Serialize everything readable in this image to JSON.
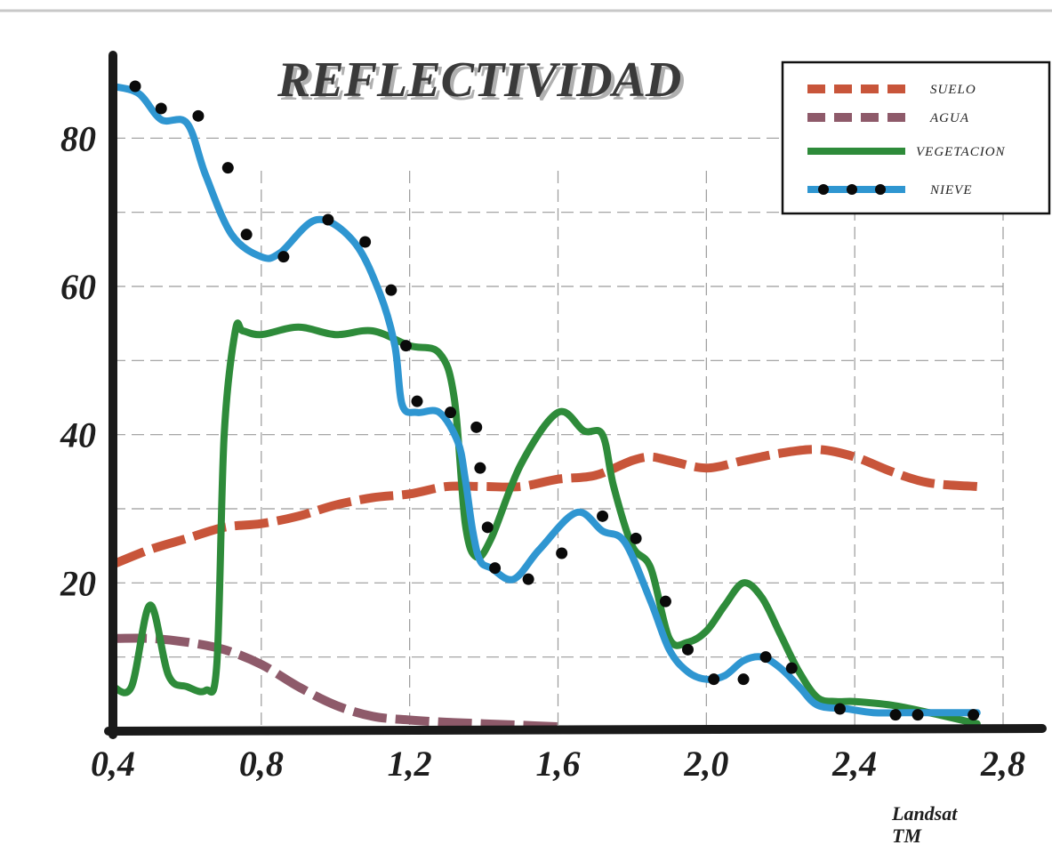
{
  "chart_data": {
    "type": "line",
    "title": "REFLECTIVIDAD",
    "xlabel": "",
    "ylabel": "",
    "xlim": [
      0.4,
      2.8
    ],
    "ylim": [
      0,
      90
    ],
    "x_ticks": [
      "0,4",
      "0,8",
      "1,2",
      "1,6",
      "2,0",
      "2,4",
      "2,8"
    ],
    "x_tick_values": [
      0.4,
      0.8,
      1.2,
      1.6,
      2.0,
      2.4,
      2.8
    ],
    "y_ticks": [
      "20",
      "40",
      "60",
      "80"
    ],
    "y_tick_values": [
      20,
      40,
      60,
      80
    ],
    "grid": "dashed",
    "legend_position": "top-right",
    "note": [
      "Landsat",
      "TM"
    ],
    "series": [
      {
        "name": "SUELO",
        "color": "#c8553a",
        "style": "dashed",
        "x": [
          0.4,
          0.5,
          0.6,
          0.7,
          0.8,
          0.9,
          1.0,
          1.1,
          1.2,
          1.3,
          1.4,
          1.5,
          1.6,
          1.7,
          1.8,
          1.85,
          1.9,
          2.0,
          2.1,
          2.2,
          2.3,
          2.4,
          2.5,
          2.6,
          2.73
        ],
        "y": [
          22.5,
          24.5,
          26,
          27.5,
          28,
          29,
          30.5,
          31.5,
          32,
          33,
          33,
          33,
          34,
          34.5,
          36.5,
          37,
          36.5,
          35.5,
          36.5,
          37.5,
          38,
          37,
          35,
          33.5,
          33
        ]
      },
      {
        "name": "AGUA",
        "color": "#8e5a6a",
        "style": "dashed",
        "x": [
          0.4,
          0.5,
          0.6,
          0.7,
          0.8,
          0.9,
          1.0,
          1.1,
          1.2,
          1.3,
          1.4,
          1.5,
          1.6
        ],
        "y": [
          12.5,
          12.5,
          12,
          11,
          9,
          6,
          3.5,
          2,
          1.5,
          1.2,
          1,
          0.8,
          0.6
        ]
      },
      {
        "name": "VEGETACION",
        "color": "#2e8b3a",
        "style": "solid",
        "x": [
          0.4,
          0.45,
          0.5,
          0.55,
          0.6,
          0.65,
          0.68,
          0.7,
          0.73,
          0.75,
          0.8,
          0.9,
          1.0,
          1.1,
          1.2,
          1.28,
          1.32,
          1.35,
          1.38,
          1.42,
          1.5,
          1.6,
          1.67,
          1.72,
          1.75,
          1.8,
          1.85,
          1.9,
          1.95,
          2.0,
          2.05,
          2.1,
          2.15,
          2.2,
          2.25,
          2.3,
          2.35,
          2.4,
          2.5,
          2.6,
          2.73
        ],
        "y": [
          6,
          6,
          17,
          7.5,
          6,
          5.5,
          9,
          40,
          54,
          54,
          53.5,
          54.5,
          53.5,
          54,
          52,
          51,
          45,
          28,
          23.5,
          26,
          36,
          43,
          40.5,
          40,
          33,
          25,
          22,
          12.5,
          12,
          13.5,
          17,
          20,
          18,
          13,
          8,
          4.5,
          4,
          4,
          3.5,
          2.5,
          1
        ]
      },
      {
        "name": "NIEVE",
        "color": "#2f96d1",
        "style": "solid-dotted",
        "x": [
          0.4,
          0.47,
          0.53,
          0.6,
          0.65,
          0.72,
          0.8,
          0.85,
          0.95,
          1.05,
          1.12,
          1.16,
          1.18,
          1.22,
          1.28,
          1.33,
          1.35,
          1.37,
          1.39,
          1.42,
          1.48,
          1.55,
          1.65,
          1.72,
          1.78,
          1.85,
          1.9,
          1.95,
          2.0,
          2.05,
          2.1,
          2.15,
          2.2,
          2.25,
          2.3,
          2.38,
          2.45,
          2.55,
          2.6,
          2.73
        ],
        "y": [
          87,
          86,
          82.5,
          82,
          75,
          67,
          64,
          64.5,
          69,
          66,
          59,
          52,
          44,
          43,
          43,
          39,
          34,
          27,
          23,
          22,
          20.5,
          24.5,
          29.5,
          27,
          25.5,
          17.5,
          11,
          8,
          7,
          7.5,
          9.5,
          10,
          8.5,
          6,
          3.5,
          3,
          2.5,
          2.5,
          2.5,
          2.5
        ]
      }
    ],
    "markers": {
      "NIEVE": {
        "x": [
          0.46,
          0.53,
          0.63,
          0.71,
          0.76,
          0.86,
          0.98,
          1.08,
          1.15,
          1.19,
          1.22,
          1.31,
          1.38,
          1.39,
          1.41,
          1.43,
          1.52,
          1.61,
          1.72,
          1.81,
          1.89,
          1.95,
          2.02,
          2.1,
          2.16,
          2.23,
          2.36,
          2.51,
          2.57,
          2.72
        ],
        "y": [
          87,
          84,
          83,
          76,
          67,
          64,
          69,
          66,
          59.5,
          52,
          44.5,
          43,
          41,
          35.5,
          27.5,
          22,
          20.5,
          24,
          29,
          26,
          17.5,
          11,
          7,
          7,
          10,
          8.5,
          3,
          2.2,
          2.2,
          2.2
        ]
      }
    }
  }
}
